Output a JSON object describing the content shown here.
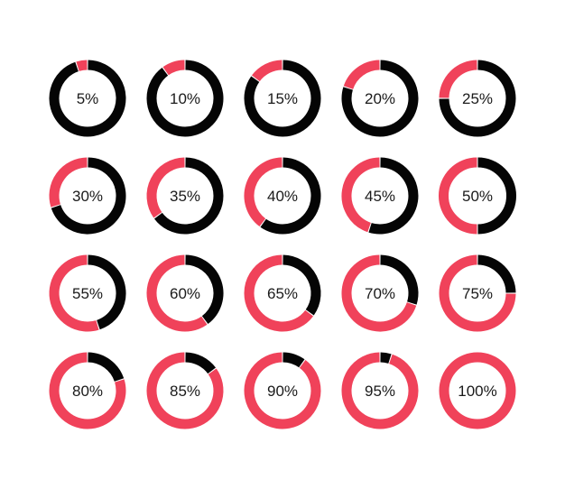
{
  "colors": {
    "progress": "#f0425a",
    "remaining": "#050505",
    "background": "#ffffff",
    "text": "#1a1a1a"
  },
  "rings": [
    {
      "label": "5%",
      "value": 5
    },
    {
      "label": "10%",
      "value": 10
    },
    {
      "label": "15%",
      "value": 15
    },
    {
      "label": "20%",
      "value": 20
    },
    {
      "label": "25%",
      "value": 25
    },
    {
      "label": "30%",
      "value": 30
    },
    {
      "label": "35%",
      "value": 35
    },
    {
      "label": "40%",
      "value": 40
    },
    {
      "label": "45%",
      "value": 45
    },
    {
      "label": "50%",
      "value": 50
    },
    {
      "label": "55%",
      "value": 55
    },
    {
      "label": "60%",
      "value": 60
    },
    {
      "label": "65%",
      "value": 65
    },
    {
      "label": "70%",
      "value": 70
    },
    {
      "label": "75%",
      "value": 75
    },
    {
      "label": "80%",
      "value": 80
    },
    {
      "label": "85%",
      "value": 85
    },
    {
      "label": "90%",
      "value": 90
    },
    {
      "label": "95%",
      "value": 95
    },
    {
      "label": "100%",
      "value": 100
    }
  ]
}
